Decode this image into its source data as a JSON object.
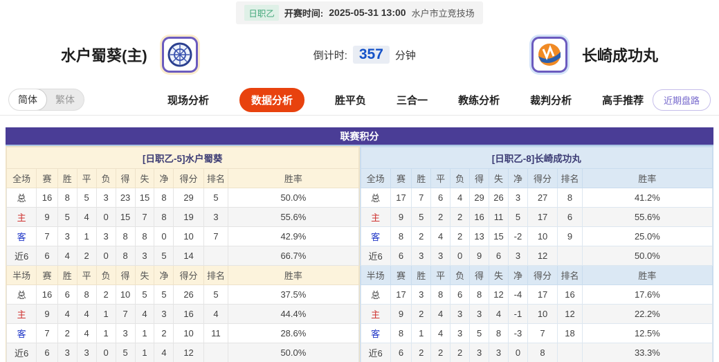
{
  "top_bar": {
    "league_badge": "日职乙",
    "kickoff_label": "开赛时间:",
    "kickoff_time": "2025-05-31 13:00",
    "venue": "水户市立竞技场"
  },
  "header": {
    "home_name": "水户蜀葵(主)",
    "away_name": "长崎成功丸",
    "countdown_label": "倒计时:",
    "countdown_value": "357",
    "countdown_unit": "分钟"
  },
  "nav": {
    "lang_simplified": "简体",
    "lang_traditional": "繁体",
    "tabs": [
      {
        "label": "现场分析",
        "active": false
      },
      {
        "label": "数据分析",
        "active": true
      },
      {
        "label": "胜平负",
        "active": false
      },
      {
        "label": "三合一",
        "active": false
      },
      {
        "label": "教练分析",
        "active": false
      },
      {
        "label": "裁判分析",
        "active": false
      },
      {
        "label": "高手推荐",
        "active": false
      }
    ],
    "recent_trend_button": "近期盘路"
  },
  "colors": {
    "accent_purple": "#4a3d96",
    "active_tab_orange": "#e8420e",
    "home_theme": "#fcf3dc",
    "away_theme": "#dbe8f4",
    "home_label_red": "#cf3230",
    "away_label_blue": "#1f36c7",
    "countdown_blue": "#1552c8",
    "badge_green": "#45a97c"
  },
  "table": {
    "title": "联赛积分",
    "home": {
      "section_title": "[日职乙-5]水户蜀葵",
      "full": {
        "scope": "全场",
        "columns": [
          "赛",
          "胜",
          "平",
          "负",
          "得",
          "失",
          "净",
          "得分",
          "排名",
          "胜率"
        ],
        "rows": [
          {
            "label": "总",
            "values": [
              "16",
              "8",
              "5",
              "3",
              "23",
              "15",
              "8",
              "29",
              "5",
              "50.0%"
            ]
          },
          {
            "label": "主",
            "values": [
              "9",
              "5",
              "4",
              "0",
              "15",
              "7",
              "8",
              "19",
              "3",
              "55.6%"
            ]
          },
          {
            "label": "客",
            "values": [
              "7",
              "3",
              "1",
              "3",
              "8",
              "8",
              "0",
              "10",
              "7",
              "42.9%"
            ]
          },
          {
            "label": "近6",
            "values": [
              "6",
              "4",
              "2",
              "0",
              "8",
              "3",
              "5",
              "14",
              "",
              "66.7%"
            ]
          }
        ]
      },
      "half": {
        "scope": "半场",
        "columns": [
          "赛",
          "胜",
          "平",
          "负",
          "得",
          "失",
          "净",
          "得分",
          "排名",
          "胜率"
        ],
        "rows": [
          {
            "label": "总",
            "values": [
              "16",
              "6",
              "8",
              "2",
              "10",
              "5",
              "5",
              "26",
              "5",
              "37.5%"
            ]
          },
          {
            "label": "主",
            "values": [
              "9",
              "4",
              "4",
              "1",
              "7",
              "4",
              "3",
              "16",
              "4",
              "44.4%"
            ]
          },
          {
            "label": "客",
            "values": [
              "7",
              "2",
              "4",
              "1",
              "3",
              "1",
              "2",
              "10",
              "11",
              "28.6%"
            ]
          },
          {
            "label": "近6",
            "values": [
              "6",
              "3",
              "3",
              "0",
              "5",
              "1",
              "4",
              "12",
              "",
              "50.0%"
            ]
          }
        ]
      }
    },
    "away": {
      "section_title": "[日职乙-8]长崎成功丸",
      "full": {
        "scope": "全场",
        "columns": [
          "赛",
          "胜",
          "平",
          "负",
          "得",
          "失",
          "净",
          "得分",
          "排名",
          "胜率"
        ],
        "rows": [
          {
            "label": "总",
            "values": [
              "17",
              "7",
              "6",
              "4",
              "29",
              "26",
              "3",
              "27",
              "8",
              "41.2%"
            ]
          },
          {
            "label": "主",
            "values": [
              "9",
              "5",
              "2",
              "2",
              "16",
              "11",
              "5",
              "17",
              "6",
              "55.6%"
            ]
          },
          {
            "label": "客",
            "values": [
              "8",
              "2",
              "4",
              "2",
              "13",
              "15",
              "-2",
              "10",
              "9",
              "25.0%"
            ]
          },
          {
            "label": "近6",
            "values": [
              "6",
              "3",
              "3",
              "0",
              "9",
              "6",
              "3",
              "12",
              "",
              "50.0%"
            ]
          }
        ]
      },
      "half": {
        "scope": "半场",
        "columns": [
          "赛",
          "胜",
          "平",
          "负",
          "得",
          "失",
          "净",
          "得分",
          "排名",
          "胜率"
        ],
        "rows": [
          {
            "label": "总",
            "values": [
              "17",
              "3",
              "8",
              "6",
              "8",
              "12",
              "-4",
              "17",
              "16",
              "17.6%"
            ]
          },
          {
            "label": "主",
            "values": [
              "9",
              "2",
              "4",
              "3",
              "3",
              "4",
              "-1",
              "10",
              "12",
              "22.2%"
            ]
          },
          {
            "label": "客",
            "values": [
              "8",
              "1",
              "4",
              "3",
              "5",
              "8",
              "-3",
              "7",
              "18",
              "12.5%"
            ]
          },
          {
            "label": "近6",
            "values": [
              "6",
              "2",
              "2",
              "2",
              "3",
              "3",
              "0",
              "8",
              "",
              "33.3%"
            ]
          }
        ]
      }
    }
  }
}
